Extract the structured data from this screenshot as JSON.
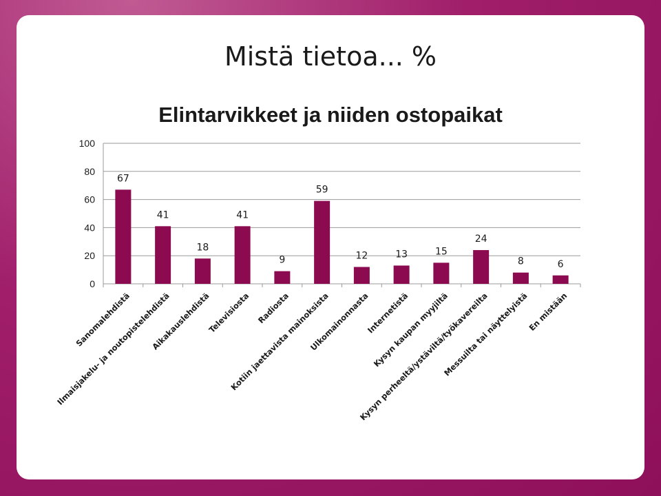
{
  "slide": {
    "title": "Mistä tietoa... %"
  },
  "colors": {
    "background": "#9e1a68",
    "bar": "#8b0a50",
    "grid": "#9a9a9a"
  },
  "chart_data": {
    "type": "bar",
    "title": "Elintarvikkeet ja niiden ostopaikat",
    "xlabel": "",
    "ylabel": "",
    "ylim": [
      0,
      100
    ],
    "yticks": [
      0,
      20,
      40,
      60,
      80,
      100
    ],
    "grid": true,
    "legend": "none",
    "categories": [
      "Sanomalehdistä",
      "Ilmaisjakelu- ja noutopistelehdistä",
      "Aikakauslehdistä",
      "Televisiosta",
      "Radiosta",
      "Kotiin jaettavista mainoksista",
      "Ulkomainonnasta",
      "Internetistä",
      "Kysyn kaupan myyjiltä",
      "Kysyn perheeltä/ystäviltä/työkavereilta",
      "Messuilta tai näyttelyistä",
      "En mistään"
    ],
    "values": [
      67,
      41,
      18,
      41,
      9,
      59,
      12,
      13,
      15,
      24,
      8,
      6
    ]
  }
}
